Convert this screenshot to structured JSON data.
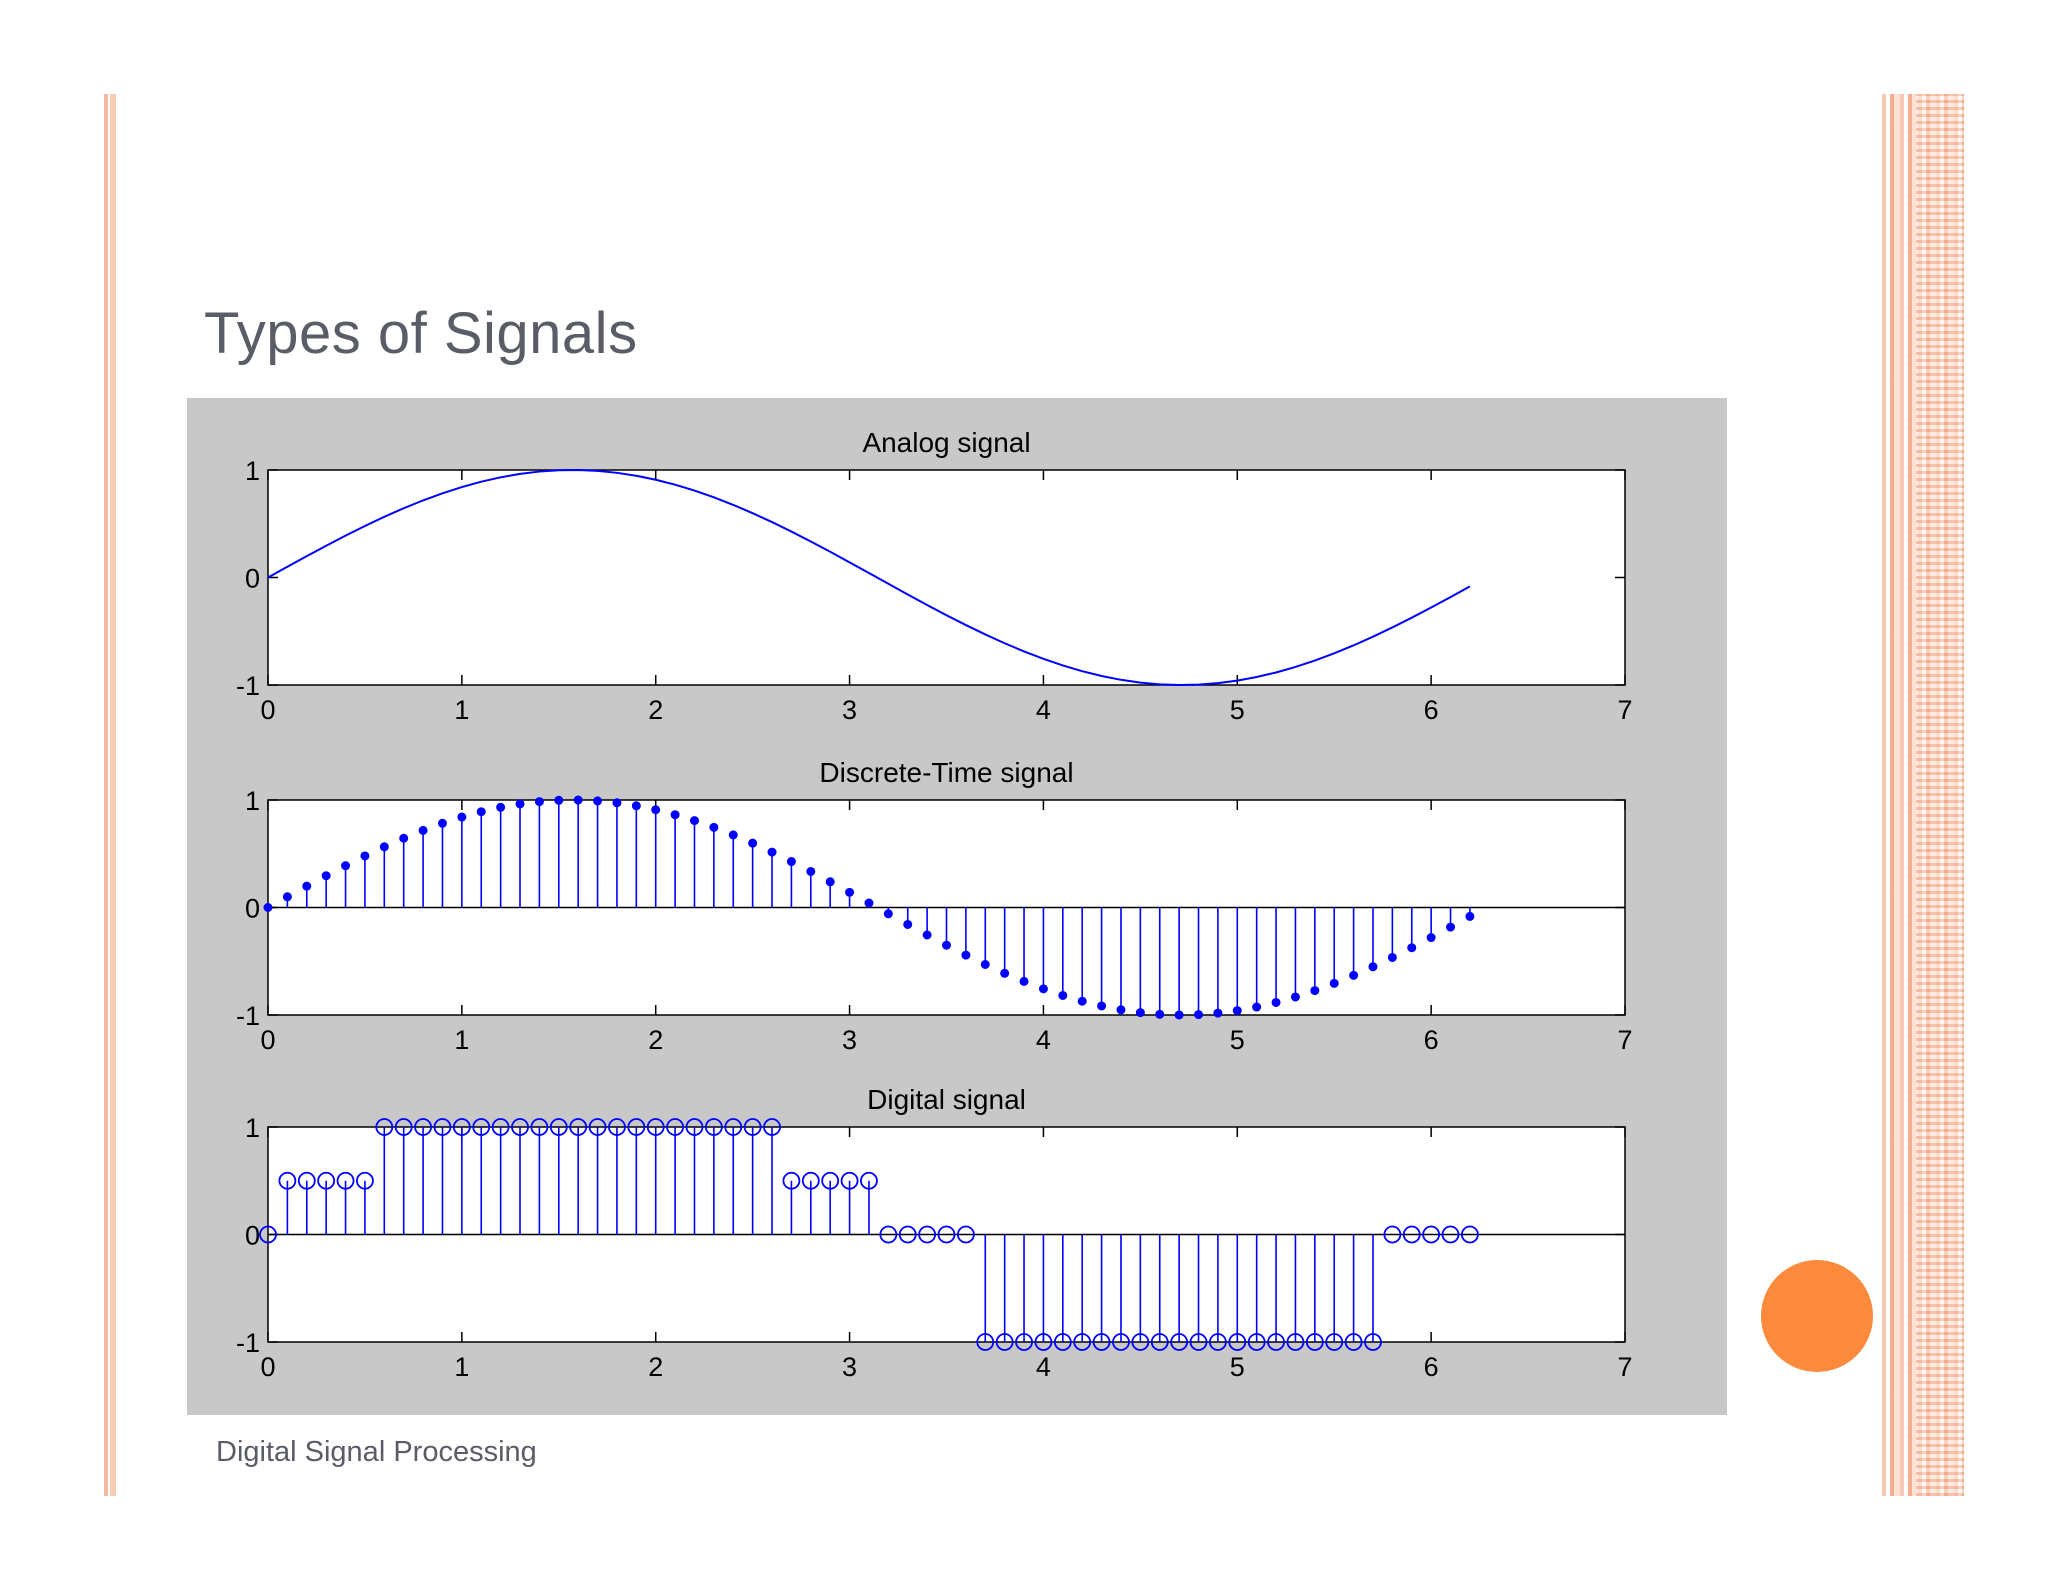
{
  "slide": {
    "title": "Types of Signals",
    "footer": "Digital Signal Processing"
  },
  "colors": {
    "plot_blue": "#0000ff",
    "figure_bg": "#c8c8c8",
    "accent_orange": "#fb8a3c",
    "title_gray": "#5a5d66"
  },
  "chart_data": [
    {
      "type": "line",
      "title": "Analog signal",
      "function": "sin(t)",
      "x_start": 0,
      "x_end": 6.2,
      "x_step": 0.1,
      "xlim": [
        0,
        7
      ],
      "ylim": [
        -1,
        1
      ],
      "xticks": [
        "0",
        "1",
        "2",
        "3",
        "4",
        "5",
        "6",
        "7"
      ],
      "yticks": [
        "-1",
        "0",
        "1"
      ],
      "grid": false
    },
    {
      "type": "stem",
      "title": "Discrete-Time signal",
      "function": "sin(t)",
      "x_start": 0,
      "x_end": 6.2,
      "x_step": 0.1,
      "marker": "filled-dot",
      "xlim": [
        0,
        7
      ],
      "ylim": [
        -1,
        1
      ],
      "xticks": [
        "0",
        "1",
        "2",
        "3",
        "4",
        "5",
        "6",
        "7"
      ],
      "yticks": [
        "-1",
        "0",
        "1"
      ],
      "grid": false
    },
    {
      "type": "stem",
      "title": "Digital signal",
      "x_start": 0,
      "x_step": 0.1,
      "marker": "open-circle",
      "values": [
        0,
        0.5,
        0.5,
        0.5,
        0.5,
        0.5,
        1,
        1,
        1,
        1,
        1,
        1,
        1,
        1,
        1,
        1,
        1,
        1,
        1,
        1,
        1,
        1,
        1,
        1,
        1,
        1,
        1,
        0.5,
        0.5,
        0.5,
        0.5,
        0.5,
        0,
        0,
        0,
        0,
        0,
        -1,
        -1,
        -1,
        -1,
        -1,
        -1,
        -1,
        -1,
        -1,
        -1,
        -1,
        -1,
        -1,
        -1,
        -1,
        -1,
        -1,
        -1,
        -1,
        -1,
        -1,
        0,
        0,
        0,
        0,
        0
      ],
      "xlim": [
        0,
        7
      ],
      "ylim": [
        -1,
        1
      ],
      "xticks": [
        "0",
        "1",
        "2",
        "3",
        "4",
        "5",
        "6",
        "7"
      ],
      "yticks": [
        "-1",
        "0",
        "1"
      ],
      "grid": false
    }
  ]
}
